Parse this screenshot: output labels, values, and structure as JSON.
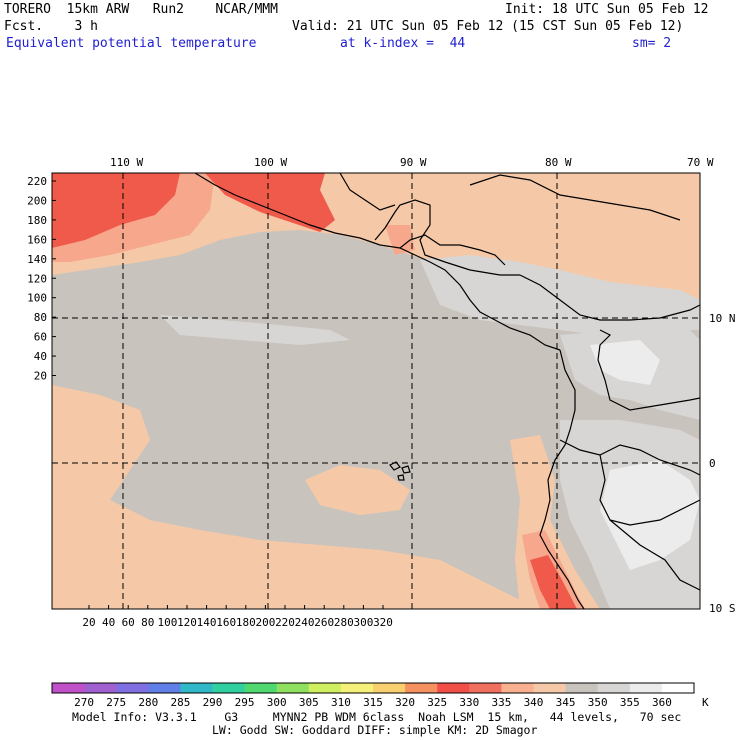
{
  "header": {
    "model": "TORERO  15km ARW   Run2    NCAR/MMM",
    "init": "Init: 18 UTC Sun 05 Feb 12",
    "fcst": "Fcst.    3 h",
    "valid": "Valid: 21 UTC Sun 05 Feb 12 (15 CST Sun 05 Feb 12)",
    "field": "Equivalent potential temperature",
    "level": "at k-index =  44",
    "smoothing": "sm= 2"
  },
  "map": {
    "top_labels": [
      "110 W",
      "100 W",
      "90 W",
      "80 W",
      "70 W"
    ],
    "right_labels": [
      "10 N",
      "0",
      "10 S"
    ],
    "y_ticks": [
      "220",
      "200",
      "180",
      "160",
      "140",
      "120",
      "100",
      "80",
      "60",
      "40",
      "20"
    ],
    "x_ticks": [
      "20",
      "40",
      "60",
      "80",
      "100",
      "120",
      "140",
      "160",
      "180",
      "200",
      "220",
      "240",
      "260",
      "280",
      "300",
      "320"
    ],
    "colors": {
      "ocean_base": "#c9c3bd",
      "warm_340": "#f5c9a8",
      "warm_335": "#f7a88c",
      "hot_330": "#f05a4a",
      "cool_350": "#d8d6d4",
      "cold_355": "#ececec"
    }
  },
  "colorbar": {
    "labels": [
      "270",
      "275",
      "280",
      "285",
      "290",
      "295",
      "300",
      "305",
      "310",
      "315",
      "320",
      "325",
      "330",
      "335",
      "340",
      "345",
      "350",
      "355",
      "360"
    ],
    "unit": "K",
    "colors": [
      "#c050c8",
      "#a060d0",
      "#7f6fe0",
      "#6080e8",
      "#30b8c8",
      "#30d0a0",
      "#50d870",
      "#90e060",
      "#d0ef60",
      "#f5f07a",
      "#f8d070",
      "#f59060",
      "#f05048",
      "#f07060",
      "#f8b090",
      "#f5c9a8",
      "#c9c3bd",
      "#d8d6d4",
      "#ececec",
      "#ffffff"
    ]
  },
  "footer": {
    "line1": "Model Info: V3.3.1    G3     MYNN2 PB WDM 6class  Noah LSM  15 km,   44 levels,   70 sec",
    "line2": "LW: Godd SW: Goddard DIFF: simple KM: 2D Smagor"
  }
}
